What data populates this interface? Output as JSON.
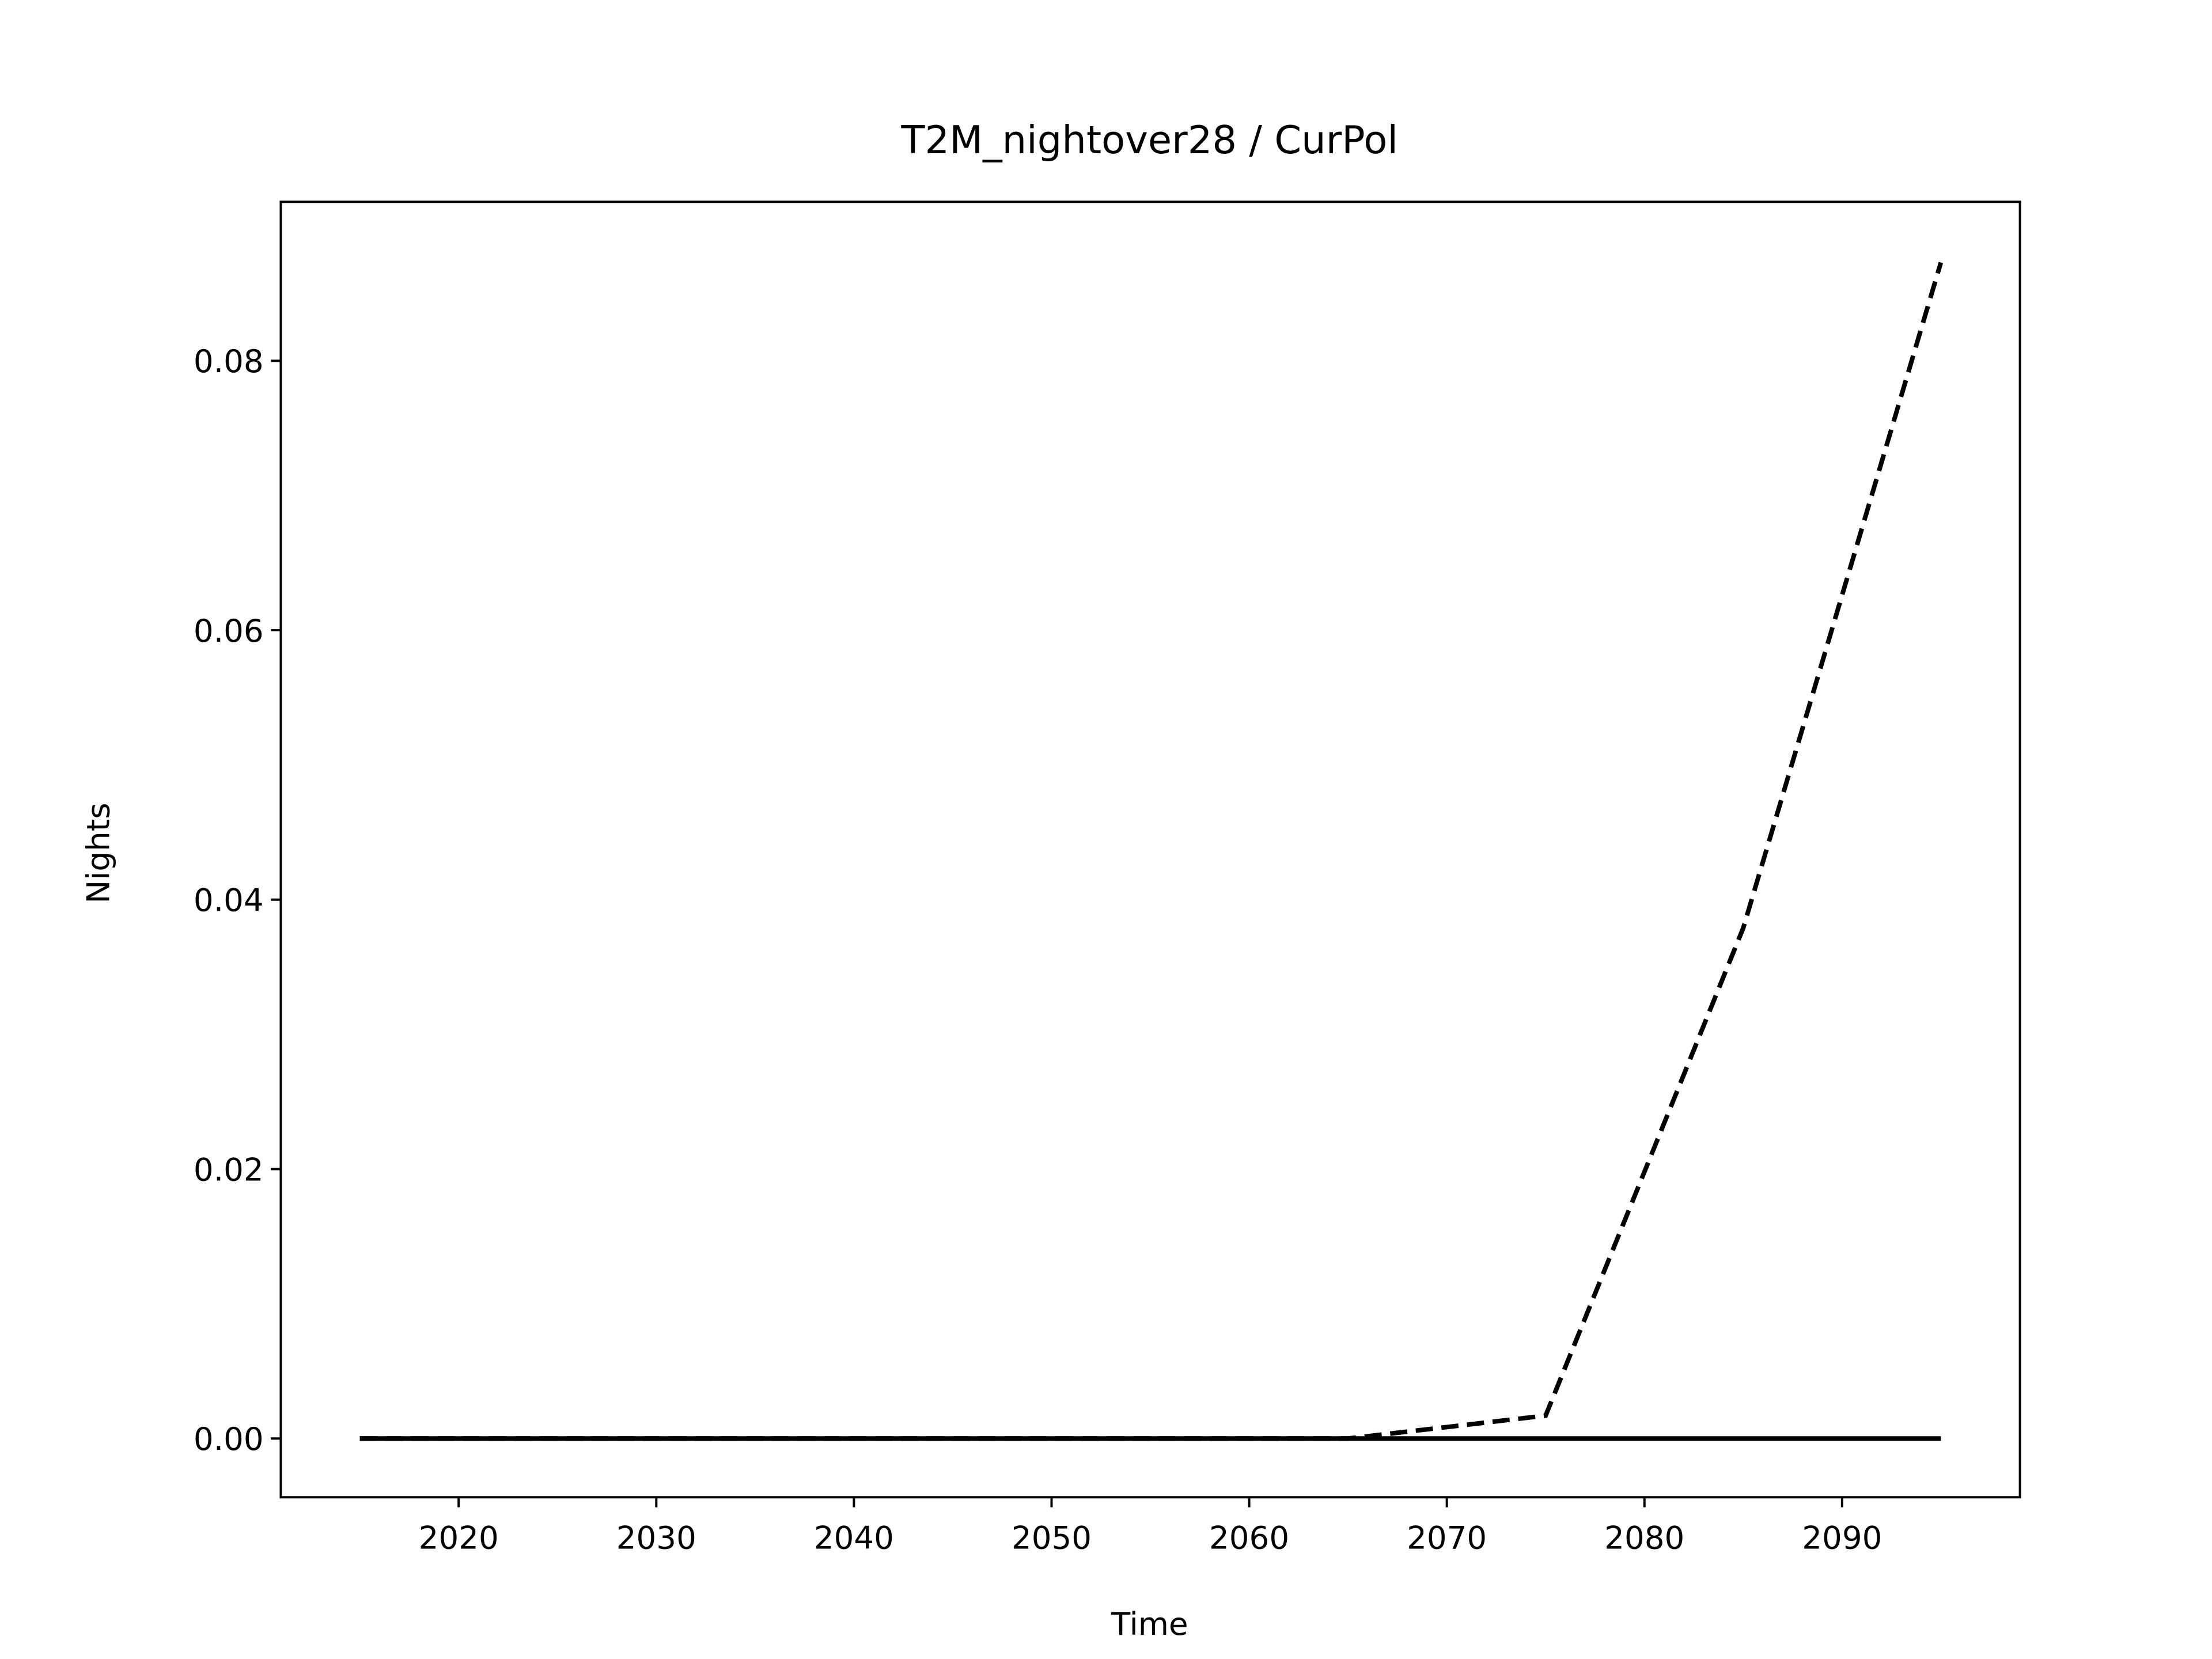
{
  "chart_data": {
    "type": "line",
    "title": "T2M_nightover28 / CurPol",
    "xlabel": "Time",
    "ylabel": "Nights",
    "x": [
      2015,
      2025,
      2035,
      2045,
      2055,
      2065,
      2075,
      2085,
      2095
    ],
    "series": [
      {
        "color": "#000000",
        "linestyle": "dashed",
        "values": [
          0,
          0,
          0,
          0,
          0,
          0,
          0.0017,
          0.0379,
          0.0873
        ]
      },
      {
        "color": "#000000",
        "linestyle": "solid",
        "values": [
          0,
          0,
          0,
          0,
          0,
          0,
          0,
          0,
          0
        ]
      }
    ],
    "xlim": [
      2011,
      2099
    ],
    "xticks": [
      2020,
      2030,
      2040,
      2050,
      2060,
      2070,
      2080,
      2090
    ],
    "ylim": [
      -0.00436,
      0.0918
    ],
    "yticks": [
      {
        "value": 0,
        "label": "0.00"
      },
      {
        "value": 0.02,
        "label": "0.02"
      },
      {
        "value": 0.04,
        "label": "0.04"
      },
      {
        "value": 0.06,
        "label": "0.06"
      },
      {
        "value": 0.08,
        "label": "0.08"
      }
    ],
    "grid": false
  }
}
